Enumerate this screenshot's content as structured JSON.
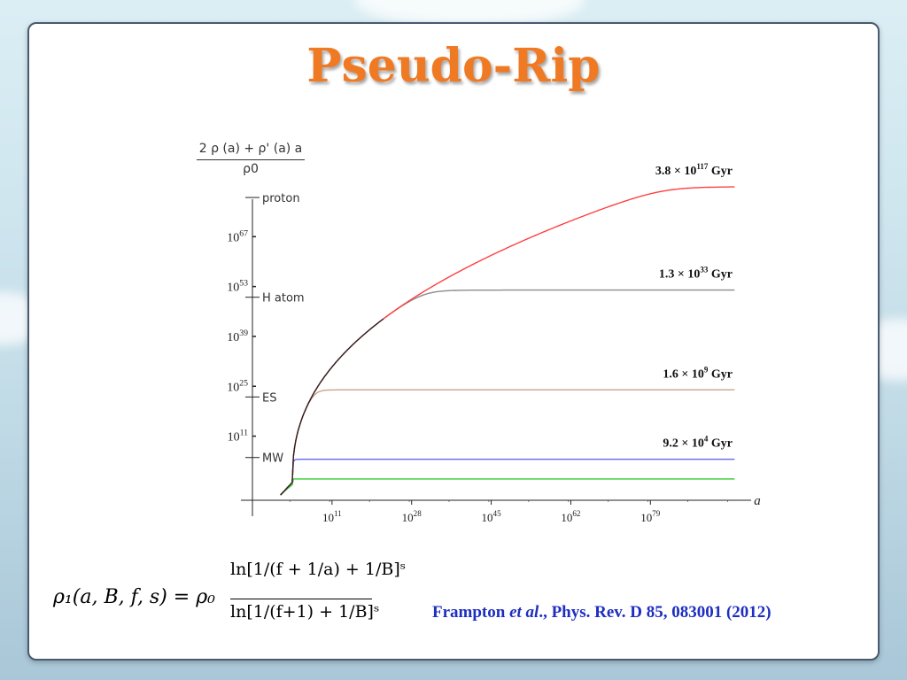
{
  "slide": {
    "title": "Pseudo-Rip"
  },
  "citation": {
    "author": "Frampton ",
    "etal": "et al",
    "rest": "., Phys. Rev. D 85, 083001 (2012)"
  },
  "formula": {
    "lhs": "ρ₁(a, B, f, s) = ρ₀",
    "numerator": "ln[1/(f + 1/a) + 1/B]ˢ",
    "denominator": "ln[1/(f+1) + 1/B]ˢ"
  },
  "colors": {
    "title": "#f07a24",
    "citation": "#1e2ec0",
    "red": "#ff4040",
    "gray": "#8c8c8c",
    "tan": "#c9a38e",
    "blue": "#6666ee",
    "green": "#33cc33",
    "black": "#222222"
  },
  "chart_data": {
    "type": "line",
    "x_scale": "log",
    "y_scale": "log",
    "ylabel_numerator": "2 ρ (a) + ρ' (a) a",
    "ylabel_denominator": "ρ0",
    "xlabel": "a",
    "x_ticks": [
      {
        "base": "10",
        "exp": "11",
        "value": 11
      },
      {
        "base": "10",
        "exp": "28",
        "value": 28
      },
      {
        "base": "10",
        "exp": "45",
        "value": 45
      },
      {
        "base": "10",
        "exp": "62",
        "value": 62
      },
      {
        "base": "10",
        "exp": "79",
        "value": 79
      }
    ],
    "y_ticks": [
      {
        "base": "10",
        "exp": "11",
        "value": 11
      },
      {
        "base": "10",
        "exp": "25",
        "value": 25
      },
      {
        "base": "10",
        "exp": "39",
        "value": 39
      },
      {
        "base": "10",
        "exp": "53",
        "value": 53
      },
      {
        "base": "10",
        "exp": "67",
        "value": 67
      }
    ],
    "reference_marks": [
      {
        "label": "proton",
        "value": 78
      },
      {
        "label": "H atom",
        "value": 50
      },
      {
        "label": "ES",
        "value": 22
      },
      {
        "label": "MW",
        "value": 5
      }
    ],
    "xlim": [
      -6,
      99
    ],
    "ylim": [
      -7,
      80
    ],
    "series": [
      {
        "name": "3.8 × 10^117 Gyr",
        "base": "3.8 × 10",
        "exp": "117",
        "unit": " Gyr",
        "color": "#ff4040",
        "plateau": 81,
        "end_x": 97
      },
      {
        "name": "1.3 × 10^33 Gyr",
        "base": "1.3 × 10",
        "exp": "33",
        "unit": " Gyr",
        "color": "#8c8c8c",
        "plateau": 52,
        "end_x": 97
      },
      {
        "name": "1.6 × 10^9 Gyr",
        "base": "1.6 × 10",
        "exp": "9",
        "unit": " Gyr",
        "color": "#c9a38e",
        "plateau": 24,
        "end_x": 97
      },
      {
        "name": "9.2 × 10^4 Gyr",
        "base": "9.2 × 10",
        "exp": "4",
        "unit": " Gyr",
        "color": "#6666ee",
        "plateau": 4.5,
        "end_x": 97
      },
      {
        "name": "",
        "color": "#33cc33",
        "plateau": -1,
        "end_x": 97
      }
    ]
  }
}
